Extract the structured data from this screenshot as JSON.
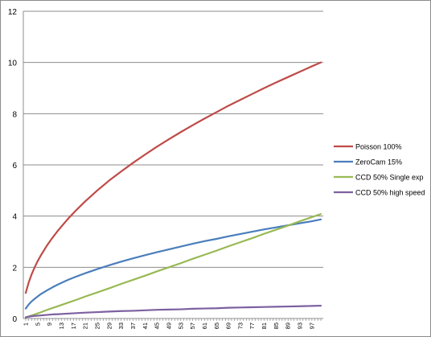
{
  "chart_data": {
    "type": "line",
    "title": "",
    "xlabel": "",
    "ylabel": "",
    "ylim": [
      0,
      12
    ],
    "yticks": [
      0,
      2,
      4,
      6,
      8,
      10,
      12
    ],
    "xlim": [
      1,
      100
    ],
    "xtick_labels": [
      1,
      5,
      9,
      13,
      17,
      21,
      25,
      29,
      33,
      37,
      41,
      45,
      49,
      53,
      57,
      61,
      65,
      69,
      73,
      77,
      81,
      85,
      89,
      93,
      97
    ],
    "grid": "horizontal",
    "legend": "right",
    "x": [
      1,
      2,
      3,
      4,
      5,
      6,
      8,
      10,
      12,
      15,
      18,
      21,
      25,
      29,
      33,
      37,
      41,
      45,
      49,
      53,
      57,
      61,
      65,
      69,
      73,
      77,
      81,
      85,
      89,
      93,
      97,
      100
    ],
    "series": [
      {
        "name": "Poisson 100%",
        "color": "#be4b48",
        "values": [
          1.0,
          1.41,
          1.73,
          2.0,
          2.24,
          2.45,
          2.83,
          3.16,
          3.46,
          3.87,
          4.24,
          4.58,
          5.0,
          5.39,
          5.74,
          6.08,
          6.4,
          6.71,
          7.0,
          7.28,
          7.55,
          7.81,
          8.06,
          8.31,
          8.54,
          8.77,
          9.0,
          9.22,
          9.43,
          9.64,
          9.85,
          10.0
        ]
      },
      {
        "name": "ZeroCam 15%",
        "color": "#4a7ebb",
        "values": [
          0.39,
          0.55,
          0.67,
          0.77,
          0.86,
          0.95,
          1.09,
          1.22,
          1.34,
          1.5,
          1.64,
          1.77,
          1.93,
          2.08,
          2.22,
          2.35,
          2.47,
          2.59,
          2.7,
          2.81,
          2.92,
          3.02,
          3.11,
          3.21,
          3.3,
          3.39,
          3.48,
          3.56,
          3.64,
          3.72,
          3.8,
          3.87
        ]
      },
      {
        "name": "CCD 50% Single exp",
        "color": "#98b954",
        "values": [
          0.04,
          0.08,
          0.12,
          0.16,
          0.2,
          0.24,
          0.33,
          0.41,
          0.49,
          0.61,
          0.73,
          0.86,
          1.02,
          1.18,
          1.35,
          1.51,
          1.67,
          1.84,
          2.0,
          2.16,
          2.33,
          2.49,
          2.65,
          2.82,
          2.98,
          3.14,
          3.31,
          3.47,
          3.63,
          3.8,
          3.96,
          4.08
        ]
      },
      {
        "name": "CCD 50% high speed",
        "color": "#7d60a0",
        "values": [
          0.05,
          0.07,
          0.09,
          0.1,
          0.11,
          0.12,
          0.14,
          0.16,
          0.17,
          0.19,
          0.21,
          0.23,
          0.25,
          0.27,
          0.29,
          0.3,
          0.32,
          0.34,
          0.35,
          0.36,
          0.38,
          0.39,
          0.4,
          0.42,
          0.43,
          0.44,
          0.45,
          0.46,
          0.47,
          0.48,
          0.49,
          0.5
        ]
      }
    ]
  }
}
